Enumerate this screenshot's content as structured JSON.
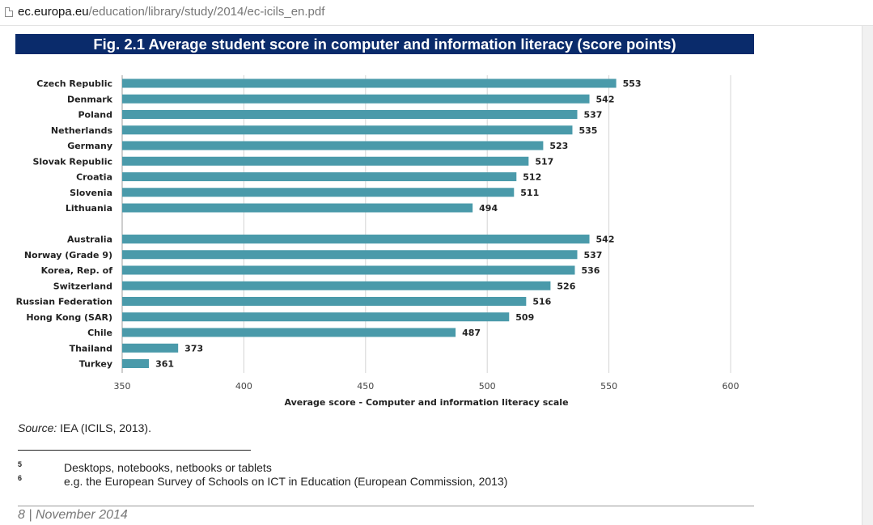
{
  "browser": {
    "url_host": "ec.europa.eu",
    "url_path": "/education/library/study/2014/ec-icils_en.pdf",
    "page_icon": "document-icon"
  },
  "figure": {
    "title": "Fig. 2.1 Average student score in computer and information literacy (score points)"
  },
  "chart_data": {
    "type": "bar",
    "orientation": "horizontal",
    "xlabel": "Average score - Computer and information literacy scale",
    "xlim": [
      350,
      600
    ],
    "ticks": [
      350,
      400,
      450,
      500,
      550,
      600
    ],
    "grid": true,
    "bar_color": "#4a9aaa",
    "groups": [
      {
        "categories": [
          "Czech Republic",
          "Denmark",
          "Poland",
          "Netherlands",
          "Germany",
          "Slovak Republic",
          "Croatia",
          "Slovenia",
          "Lithuania"
        ],
        "values": [
          553,
          542,
          537,
          535,
          523,
          517,
          512,
          511,
          494
        ]
      },
      {
        "categories": [
          "Australia",
          "Norway (Grade 9)",
          "Korea, Rep. of",
          "Switzerland",
          "Russian Federation",
          "Hong Kong (SAR)",
          "Chile",
          "Thailand",
          "Turkey"
        ],
        "values": [
          542,
          537,
          536,
          526,
          516,
          509,
          487,
          373,
          361
        ]
      }
    ]
  },
  "source": {
    "label": "Source:",
    "text": " IEA (ICILS, 2013)."
  },
  "footnotes": [
    {
      "number": "5",
      "text": "Desktops, notebooks, netbooks or tablets"
    },
    {
      "number": "6",
      "text": "e.g. the European Survey of Schools on ICT in Education (European Commission, 2013)"
    }
  ],
  "page_footer": "8  |  November 2014"
}
